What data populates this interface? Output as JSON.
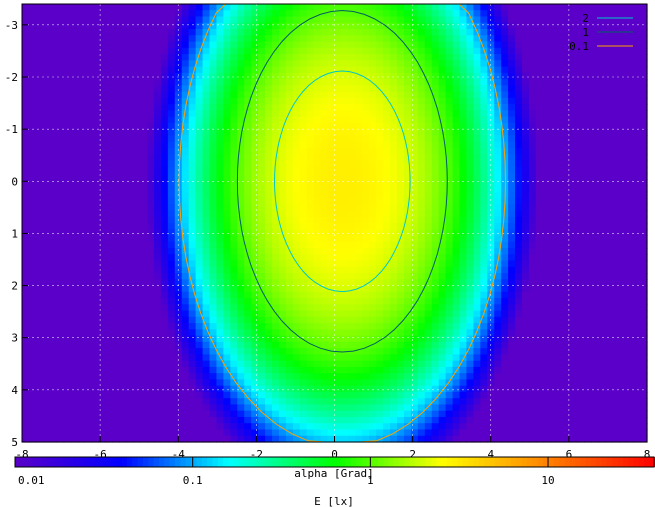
{
  "chart_data": {
    "type": "heatmap",
    "title": "",
    "xlabel": "alpha [Grad]",
    "ylabel": "",
    "xlim": [
      -8,
      8
    ],
    "ylim": [
      5,
      -3.4
    ],
    "x_ticks": [
      "-8",
      "-6",
      "-4",
      "-2",
      "0",
      "2",
      "4",
      "6",
      "8"
    ],
    "x_tick_values": [
      -8,
      -6,
      -4,
      -2,
      0,
      2,
      4,
      6,
      8
    ],
    "y_ticks": [
      "-3",
      "-2",
      "-1",
      "0",
      "1",
      "2",
      "3",
      "4",
      "5"
    ],
    "y_tick_values": [
      -3,
      -2,
      -1,
      0,
      1,
      2,
      3,
      4,
      5
    ],
    "grid": true,
    "colorbar": {
      "label": "E [lx]",
      "scale": "log",
      "range": [
        0.01,
        40
      ],
      "tick_labels": [
        "0.01",
        "0.1",
        "1",
        "10"
      ],
      "tick_values": [
        0.01,
        0.1,
        1,
        10
      ],
      "colors": [
        "#5a00c8",
        "#0000ff",
        "#00ffff",
        "#00ff00",
        "#ffff00",
        "#ff8000",
        "#ff0000"
      ]
    },
    "field": {
      "description_peak_value": 3.0,
      "peak_x": 0.2,
      "peak_y": 0.0
    },
    "contours": [
      {
        "level": "2",
        "color": "#00c8c8"
      },
      {
        "level": "1",
        "color": "#006060"
      },
      {
        "level": "0.1",
        "color": "#ffa000"
      }
    ],
    "legend_position": "top-right"
  }
}
